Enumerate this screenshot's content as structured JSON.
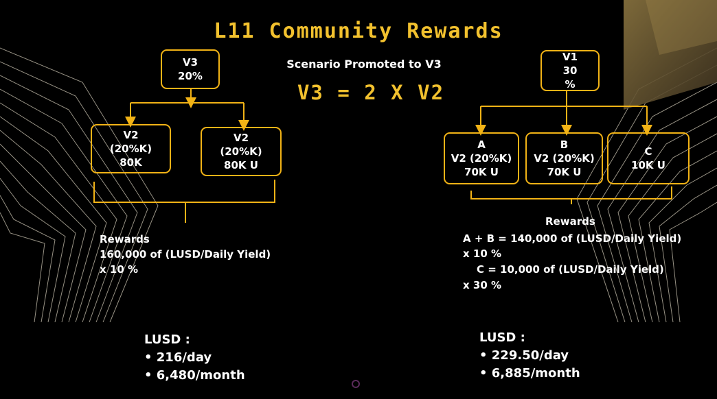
{
  "title": "L11 Community Rewards",
  "scenario": "Scenario Promoted to V3",
  "formula": "V3 = 2 X V2",
  "colors": {
    "accent": "#f2c12e",
    "box_border": "#f2b316",
    "background": "#000000"
  },
  "left": {
    "top_node": {
      "line1": "V3",
      "line2": "20%"
    },
    "children": [
      {
        "line1": "V2",
        "line2": "(20%K)",
        "line3": "80K"
      },
      {
        "line1": "V2",
        "line2": "(20%K)",
        "line3": "80K U"
      }
    ],
    "rewards": {
      "label": "Rewards",
      "line1": "160,000 of (LUSD/Daily Yield)",
      "line2": "x 10 %"
    },
    "lusd": {
      "label": "LUSD :",
      "items": [
        "216/day",
        "6,480/month"
      ]
    }
  },
  "right": {
    "top_node": {
      "line1": "V1",
      "line2": "30",
      "line3": "%"
    },
    "children": [
      {
        "line1": "A",
        "line2": "V2 (20%K)",
        "line3": "70K U"
      },
      {
        "line1": "B",
        "line2": "V2 (20%K)",
        "line3": "70K U"
      },
      {
        "line1": "C",
        "line2": "10K U"
      }
    ],
    "rewards": {
      "label": "Rewards",
      "line1": "A + B = 140,000 of (LUSD/Daily Yield)",
      "line2": "x 10 %",
      "line3": "C = 10,000 of (LUSD/Daily Yield)",
      "line4": "x 30 %"
    },
    "lusd": {
      "label": "LUSD :",
      "items": [
        "229.50/day",
        "6,885/month"
      ]
    }
  }
}
